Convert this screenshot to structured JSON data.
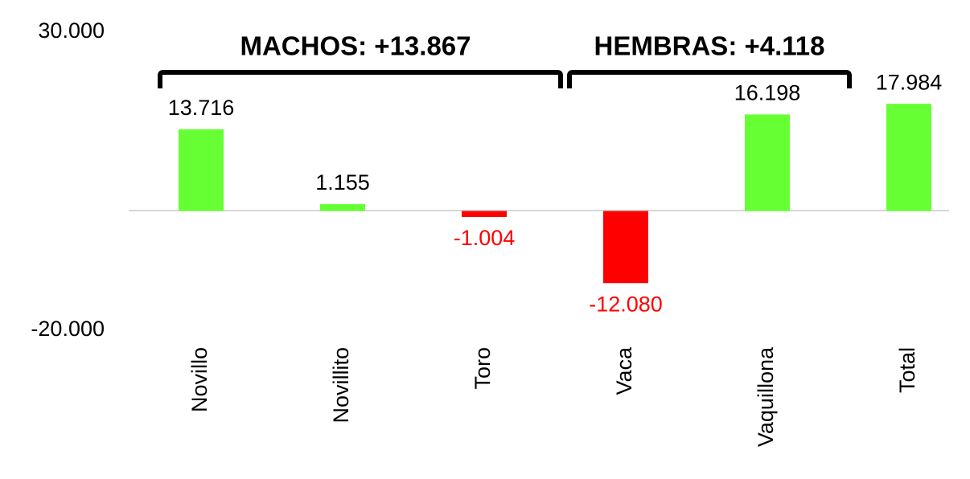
{
  "chart_data": {
    "type": "bar",
    "categories": [
      "Novillo",
      "Novillito",
      "Toro",
      "Vaca",
      "Vaquillona",
      "Total"
    ],
    "values": [
      13716,
      1155,
      -1004,
      -12080,
      16198,
      17984
    ],
    "value_labels": [
      "13.716",
      "1.155",
      "-1.004",
      "-12.080",
      "16.198",
      "17.984"
    ],
    "colors": [
      "#66ff33",
      "#66ff33",
      "#ff0000",
      "#ff0000",
      "#66ff33",
      "#66ff33"
    ],
    "ylim": [
      -20000,
      30000
    ],
    "yticks": [
      {
        "value": -20000,
        "label": "-20.000"
      },
      {
        "value": 30000,
        "label": "30.000"
      }
    ],
    "grid": false,
    "annotations": [
      "MACHOS: +13.867",
      "HEMBRAS: +4.118"
    ]
  }
}
